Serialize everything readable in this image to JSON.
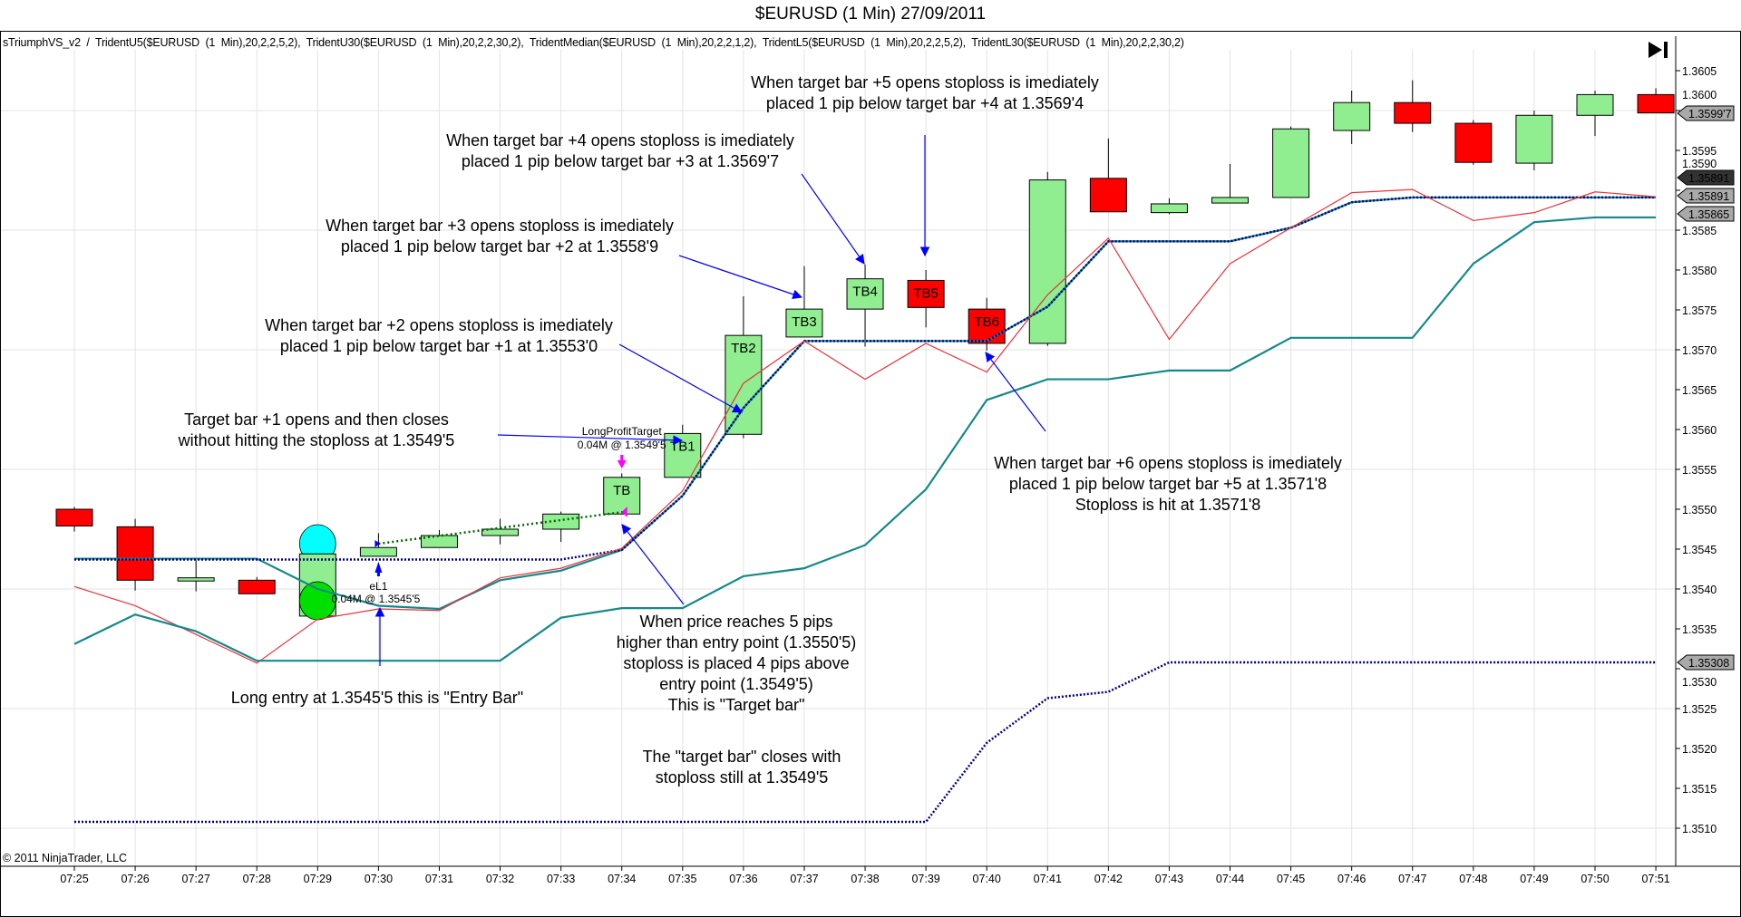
{
  "header": {
    "title": "$EURUSD (1 Min)  27/09/2011",
    "legend": "sTriumphVS_v2  /  TridentU5($EURUSD  (1  Min),20,2,2,5,2),  TridentU30($EURUSD  (1  Min),20,2,2,30,2),  TridentMedian($EURUSD  (1  Min),20,2,2,1,2),  TridentL5($EURUSD  (1  Min),20,2,2,5,2),  TridentL30($EURUSD  (1  Min),20,2,2,30,2)",
    "copyright": "© 2011 NinjaTrader, LLC",
    "end_button_icon": "skip-to-end-icon"
  },
  "colors": {
    "up": "#90ee90",
    "down": "#ff0000",
    "teal": "#16898a",
    "navy": "#000080",
    "red_line": "#e8333a",
    "arrow": "#0000ff",
    "magenta": "#ff00ff",
    "label_gray": "#a9a9a9"
  },
  "chart_data": {
    "type": "candlestick",
    "title": "$EURUSD (1 Min)  27/09/2011",
    "x": [
      "07:25",
      "07:26",
      "07:27",
      "07:28",
      "07:29",
      "07:30",
      "07:31",
      "07:32",
      "07:33",
      "07:34",
      "07:35",
      "07:36",
      "07:37",
      "07:38",
      "07:39",
      "07:40",
      "07:41",
      "07:42",
      "07:43",
      "07:44",
      "07:45",
      "07:46",
      "07:47",
      "07:48",
      "07:49",
      "07:50",
      "07:51"
    ],
    "ohlc": [
      [
        1.355,
        1.35503,
        1.35472,
        1.35479
      ],
      [
        1.35478,
        1.35488,
        1.35398,
        1.35411
      ],
      [
        1.3541,
        1.35436,
        1.35397,
        1.35414
      ],
      [
        1.35411,
        1.35415,
        1.35394,
        1.35394
      ],
      [
        1.35366,
        1.35444,
        1.35366,
        1.35444
      ],
      [
        1.35441,
        1.3547,
        1.35441,
        1.35452
      ],
      [
        1.35452,
        1.35474,
        1.35452,
        1.35467
      ],
      [
        1.35467,
        1.35488,
        1.35456,
        1.35475
      ],
      [
        1.35475,
        1.35497,
        1.35459,
        1.35494
      ],
      [
        1.35494,
        1.35545,
        1.35494,
        1.3554
      ],
      [
        1.3554,
        1.35606,
        1.3554,
        1.35595
      ],
      [
        1.35594,
        1.35767,
        1.35589,
        1.35718
      ],
      [
        1.35716,
        1.35805,
        1.35716,
        1.35751
      ],
      [
        1.35751,
        1.35807,
        1.35704,
        1.35789
      ],
      [
        1.35787,
        1.358,
        1.35728,
        1.35753
      ],
      [
        1.35751,
        1.35765,
        1.35699,
        1.35708
      ],
      [
        1.35708,
        1.35923,
        1.35705,
        1.35913
      ],
      [
        1.35915,
        1.35965,
        1.35873,
        1.35873
      ],
      [
        1.35872,
        1.3589,
        1.3587,
        1.35883
      ],
      [
        1.35884,
        1.35933,
        1.35884,
        1.35891
      ],
      [
        1.35891,
        1.3598,
        1.35891,
        1.35977
      ],
      [
        1.35975,
        1.36025,
        1.35958,
        1.3601
      ],
      [
        1.3601,
        1.36038,
        1.35973,
        1.35984
      ],
      [
        1.35984,
        1.35988,
        1.35932,
        1.35935
      ],
      [
        1.35934,
        1.36,
        1.35925,
        1.35994
      ],
      [
        1.35994,
        1.36025,
        1.35968,
        1.3602
      ],
      [
        1.3602,
        1.36028,
        1.35997,
        1.35997
      ]
    ],
    "bar_labels": [
      "",
      "",
      "",
      "",
      "",
      "",
      "",
      "",
      "",
      "TB",
      "TB1",
      "TB2",
      "TB3",
      "TB4",
      "TB5",
      "TB6",
      "",
      "",
      "",
      "",
      "",
      "",
      "",
      "",
      "",
      "",
      ""
    ],
    "series": [
      {
        "color": "teal",
        "style": "solid",
        "values": [
          1.35438,
          1.35438,
          1.35438,
          1.35438,
          1.354,
          1.35379,
          1.35375,
          1.35411,
          1.35423,
          1.35449,
          1.35517,
          1.35627,
          1.35711,
          1.35711,
          1.35711,
          1.35711,
          1.35754,
          1.35836,
          1.35836,
          1.35836,
          1.35853,
          1.35885,
          1.35891,
          1.35891,
          1.35891,
          1.35891,
          1.35891
        ]
      },
      {
        "color": "navy",
        "style": "dotted",
        "values": [
          1.35437,
          1.35437,
          1.35437,
          1.35437,
          1.35437,
          1.35437,
          1.35437,
          1.35437,
          1.35437,
          1.35449,
          1.35517,
          1.35627,
          1.35711,
          1.35711,
          1.35711,
          1.35711,
          1.35754,
          1.35836,
          1.35836,
          1.35836,
          1.35853,
          1.35885,
          1.35891,
          1.35891,
          1.35891,
          1.35891,
          1.35891
        ]
      },
      {
        "color": "red_line",
        "style": "thin",
        "values": [
          1.35403,
          1.35379,
          1.35343,
          1.35307,
          1.35362,
          1.35375,
          1.35373,
          1.35414,
          1.35426,
          1.35451,
          1.35523,
          1.35658,
          1.35711,
          1.35663,
          1.35708,
          1.35672,
          1.35769,
          1.3584,
          1.35713,
          1.35808,
          1.35853,
          1.35897,
          1.35901,
          1.35862,
          1.35872,
          1.35898,
          1.35892
        ]
      },
      {
        "color": "teal",
        "style": "solid",
        "values": [
          1.35331,
          1.35368,
          1.35347,
          1.3531,
          1.3531,
          1.3531,
          1.3531,
          1.3531,
          1.35364,
          1.35376,
          1.35376,
          1.35416,
          1.35426,
          1.35455,
          1.35525,
          1.35637,
          1.35663,
          1.35663,
          1.35674,
          1.35674,
          1.35715,
          1.35715,
          1.35715,
          1.35808,
          1.3586,
          1.35866,
          1.35866
        ]
      },
      {
        "color": "navy",
        "style": "dotted",
        "values": [
          1.35108,
          1.35108,
          1.35108,
          1.35108,
          1.35108,
          1.35108,
          1.35108,
          1.35108,
          1.35108,
          1.35108,
          1.35108,
          1.35108,
          1.35108,
          1.35108,
          1.35108,
          1.35207,
          1.35263,
          1.35271,
          1.35308,
          1.35308,
          1.35308,
          1.35308,
          1.35308,
          1.35308,
          1.35308,
          1.35308,
          1.35308
        ]
      }
    ],
    "ylim": [
      1.3505,
      1.361
    ],
    "y_ticks": [
      "1.3510",
      "1.3515",
      "1.3520",
      "1.3525",
      "1.3530",
      "1.3535",
      "1.3540",
      "1.3545",
      "1.3550",
      "1.3555",
      "1.3560",
      "1.3565",
      "1.3570",
      "1.3575",
      "1.3580",
      "1.3585",
      "1.3590",
      "1.3595",
      "1.3600",
      "1.3605"
    ],
    "price_markers": [
      {
        "text": "1.35891",
        "price": 1.35895,
        "dark": true
      },
      {
        "text": "1.3599'7",
        "price": 1.35997
      },
      {
        "text": "1.35891",
        "price": 1.35891
      },
      {
        "text": "1.35865",
        "price": 1.35865
      },
      {
        "text": "1.35308",
        "price": 1.35308
      }
    ],
    "grid": true,
    "entry": {
      "label": "eL1",
      "detail": "0.04M @ 1.3545'5"
    },
    "profit_target": {
      "label": "LongProfitTarget",
      "detail": "0.04M @ 1.3549'5"
    },
    "annotations": [
      {
        "lines": [
          "When target bar +5 opens stoploss is imediately",
          "placed 1 pip below target bar +4 at 1.3569'4"
        ]
      },
      {
        "lines": [
          "When target bar +4 opens stoploss is imediately",
          "placed 1 pip below target bar +3 at 1.3569'7"
        ]
      },
      {
        "lines": [
          "When target bar +3 opens stoploss is imediately",
          "placed 1 pip below target bar +2 at 1.3558'9"
        ]
      },
      {
        "lines": [
          "When target bar +2 opens stoploss is imediately",
          "placed 1 pip below target bar +1 at 1.3553'0"
        ]
      },
      {
        "lines": [
          "Target bar +1 opens and then closes",
          "without hitting the stoploss at 1.3549'5"
        ]
      },
      {
        "lines": [
          "Long entry at 1.3545'5 this is \"Entry Bar\""
        ]
      },
      {
        "lines": [
          "When price reaches 5 pips",
          "higher than entry point (1.3550'5)",
          "stoploss is placed 4 pips above",
          "entry point (1.3549'5)",
          "This is \"Target bar\""
        ]
      },
      {
        "lines": [
          "The \"target bar\" closes with",
          "stoploss still at 1.3549'5"
        ]
      },
      {
        "lines": [
          "When target bar +6 opens stoploss is imediately",
          "placed 1 pip below target bar +5 at 1.3571'8",
          "Stoploss is hit at 1.3571'8"
        ]
      }
    ]
  }
}
